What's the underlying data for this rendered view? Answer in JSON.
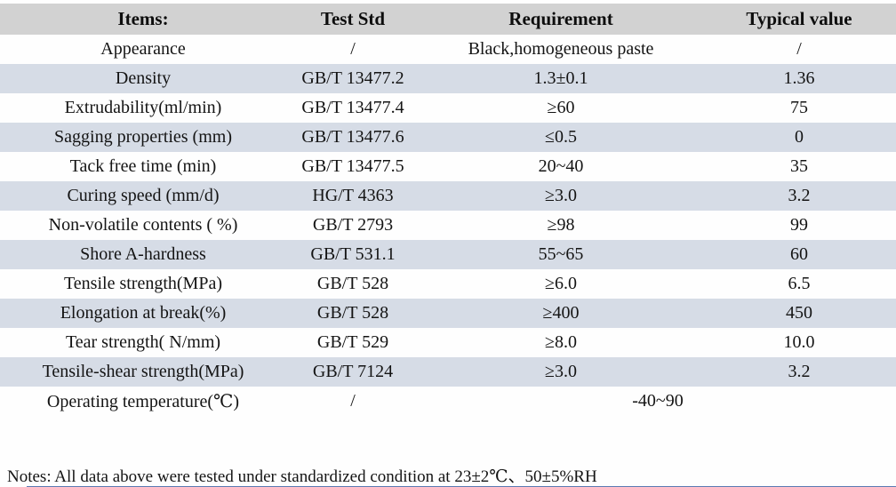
{
  "table": {
    "headers": [
      "Items:",
      "Test Std",
      "Requirement",
      "Typical value"
    ],
    "rows": [
      {
        "item": "Appearance",
        "std": "/",
        "req": "Black,homogeneous paste",
        "typical": "/",
        "shaded": false,
        "merged": false
      },
      {
        "item": "Density",
        "std": "GB/T 13477.2",
        "req": "1.3±0.1",
        "typical": "1.36",
        "shaded": true,
        "merged": false
      },
      {
        "item": "Extrudability(ml/min)",
        "std": "GB/T 13477.4",
        "req": "≥60",
        "typical": "75",
        "shaded": false,
        "merged": false
      },
      {
        "item": "Sagging properties (mm)",
        "std": "GB/T 13477.6",
        "req": "≤0.5",
        "typical": "0",
        "shaded": true,
        "merged": false
      },
      {
        "item": "Tack free time (min)",
        "std": "GB/T 13477.5",
        "req": "20~40",
        "typical": "35",
        "shaded": false,
        "merged": false
      },
      {
        "item": "Curing speed (mm/d)",
        "std": "HG/T 4363",
        "req": "≥3.0",
        "typical": "3.2",
        "shaded": true,
        "merged": false
      },
      {
        "item": "Non-volatile contents ( %)",
        "std": "GB/T 2793",
        "req": "≥98",
        "typical": "99",
        "shaded": false,
        "merged": false
      },
      {
        "item": "Shore A-hardness",
        "std": "GB/T 531.1",
        "req": "55~65",
        "typical": "60",
        "shaded": true,
        "merged": false
      },
      {
        "item": "Tensile strength(MPa)",
        "std": "GB/T 528",
        "req": "≥6.0",
        "typical": "6.5",
        "shaded": false,
        "merged": false
      },
      {
        "item": "Elongation at break(%)",
        "std": "GB/T 528",
        "req": "≥400",
        "typical": "450",
        "shaded": true,
        "merged": false
      },
      {
        "item": "Tear strength( N/mm)",
        "std": "GB/T 529",
        "req": "≥8.0",
        "typical": "10.0",
        "shaded": false,
        "merged": false
      },
      {
        "item": "Tensile-shear strength(MPa)",
        "std": "GB/T 7124",
        "req": "≥3.0",
        "typical": "3.2",
        "shaded": true,
        "merged": false
      },
      {
        "item": "Operating temperature(℃)",
        "std": "/",
        "req": "-40~90",
        "typical": "",
        "shaded": false,
        "merged": true
      }
    ]
  },
  "notes_text": "Notes: All data above were tested under standardized condition at 23±2℃、50±5%RH",
  "colors": {
    "header_bg": "#d2d2d2",
    "shaded_row_bg": "#d6dce6",
    "bottom_bar": "#5b79b2",
    "text": "#141414"
  }
}
